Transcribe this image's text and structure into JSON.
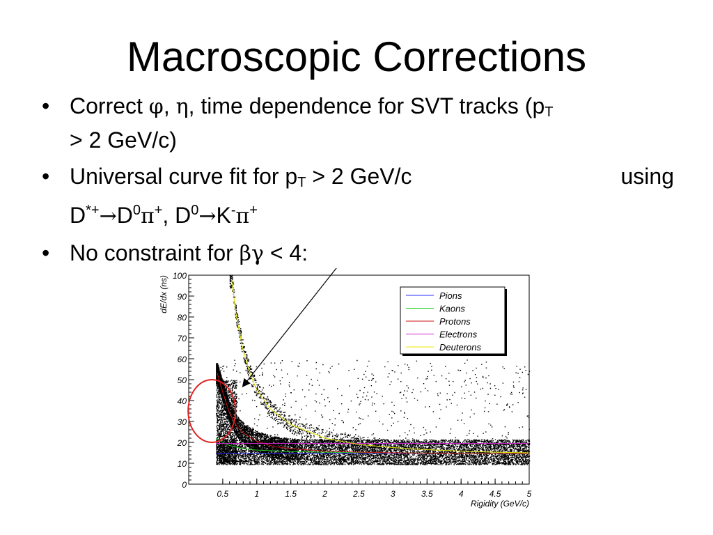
{
  "slide": {
    "title": "Macroscopic Corrections",
    "bullets": [
      {
        "part1": "Correct ",
        "phi": "φ",
        "comma1": ", ",
        "eta": "η",
        "part2": ", time dependence for SVT tracks (p",
        "sub_T": "T",
        "part3": "> 2 GeV/c)"
      },
      {
        "part1": "Universal curve fit for p",
        "sub_T": "T",
        "part2": " > 2 GeV/c",
        "using": "using",
        "d_star": "D",
        "sup_star": "*+",
        "arrow1": "→",
        "d0": "D",
        "sup_0a": "0",
        "pi1": "π",
        "sup_plus1": "+",
        "comma": ", D",
        "sup_0b": "0",
        "arrow2": "→",
        "k": "K",
        "sup_minus": "-",
        "pi2": "π",
        "sup_plus2": "+"
      },
      {
        "part1": "No constraint for ",
        "bg": "βγ",
        "part2": " < 4:"
      }
    ],
    "bullet_char": "•"
  },
  "chart_data": {
    "type": "scatter",
    "title": "",
    "xlabel": "Rigidity (GeV/c)",
    "ylabel": "dE/dx  (ns)",
    "xlim": [
      0,
      5
    ],
    "ylim": [
      0,
      100
    ],
    "x_ticks": [
      "0.5",
      "1",
      "1.5",
      "2",
      "2.5",
      "3",
      "3.5",
      "4",
      "4.5",
      "5"
    ],
    "y_ticks": [
      "0",
      "10",
      "20",
      "30",
      "40",
      "50",
      "60",
      "70",
      "80",
      "90",
      "100"
    ],
    "legend_position": "top-right",
    "series": [
      {
        "name": "Pions",
        "color": "#2b2bff",
        "x": [
          0.4,
          0.5,
          1,
          1.5,
          2,
          3,
          4,
          5
        ],
        "y": [
          14.8,
          14.8,
          14.8,
          14.8,
          14.8,
          14.8,
          14.8,
          14.8
        ]
      },
      {
        "name": "Kaons",
        "color": "#22cc22",
        "x": [
          0.4,
          0.5,
          0.6,
          0.8,
          1,
          1.5,
          2,
          3,
          4,
          5
        ],
        "y": [
          22,
          20,
          18.5,
          17,
          16.3,
          15.6,
          15.3,
          15,
          14.8,
          14.7
        ]
      },
      {
        "name": "Protons",
        "color": "#cc1111",
        "x": [
          0.42,
          0.5,
          0.6,
          0.7,
          0.8,
          1,
          1.25,
          1.5,
          2,
          2.5,
          3,
          4,
          5
        ],
        "y": [
          53,
          44,
          34,
          28,
          24.5,
          20.5,
          18,
          17,
          15.8,
          15.3,
          15,
          14.8,
          14.7
        ]
      },
      {
        "name": "Electrons",
        "color": "#cc22cc",
        "x": [
          0.4,
          1,
          2,
          3,
          4,
          5
        ],
        "y": [
          19.5,
          19.5,
          19.5,
          19.5,
          19.5,
          19.5
        ]
      },
      {
        "name": "Deuterons",
        "color": "#e8e800",
        "x": [
          0.63,
          0.7,
          0.8,
          0.9,
          1,
          1.2,
          1.5,
          2,
          2.5,
          3,
          3.5,
          4,
          4.5,
          5
        ],
        "y": [
          98,
          80,
          64,
          53,
          45,
          36,
          28.5,
          22,
          19,
          17.5,
          16.5,
          15.8,
          15.3,
          15
        ]
      }
    ],
    "annotations": {
      "circle_color": "#dd2222",
      "arrow_color": "#000000"
    }
  }
}
